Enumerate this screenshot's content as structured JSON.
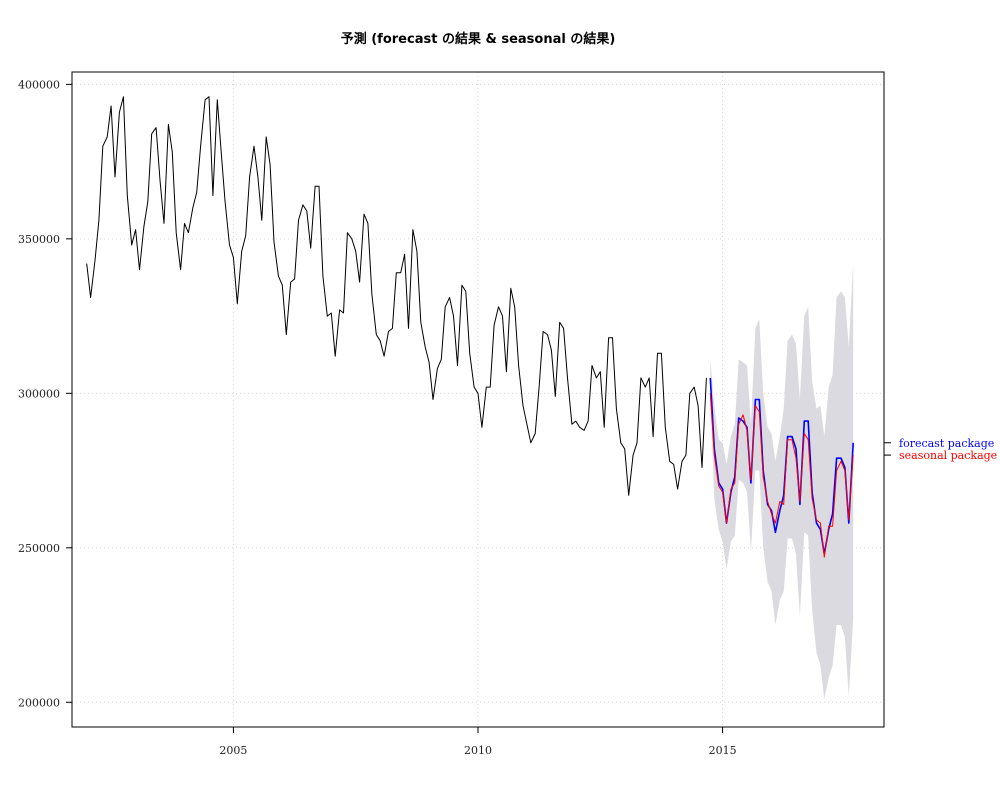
{
  "chart_data": {
    "type": "line",
    "title": "予測 (forecast の結果 & seasonal の結果)",
    "xlabel": "",
    "ylabel": "",
    "xlim": [
      2001.7,
      2018.3
    ],
    "ylim": [
      192000,
      404000
    ],
    "x_ticks": [
      2005,
      2010,
      2015
    ],
    "x_tick_labels": [
      "2005",
      "2010",
      "2015"
    ],
    "y_ticks": [
      200000,
      250000,
      300000,
      350000,
      400000
    ],
    "y_tick_labels": [
      "200000",
      "250000",
      "300000",
      "350000",
      "400000"
    ],
    "grid": true,
    "legend_placement": "right margin",
    "series": [
      {
        "key": "observed",
        "color": "#000000",
        "points": [
          [
            2002.0,
            342000
          ],
          [
            2002.08,
            331000
          ],
          [
            2002.17,
            343000
          ],
          [
            2002.25,
            356000
          ],
          [
            2002.33,
            380000
          ],
          [
            2002.42,
            383000
          ],
          [
            2002.5,
            393000
          ],
          [
            2002.58,
            370000
          ],
          [
            2002.67,
            391000
          ],
          [
            2002.75,
            396000
          ],
          [
            2002.83,
            364000
          ],
          [
            2002.92,
            348000
          ],
          [
            2003.0,
            353000
          ],
          [
            2003.08,
            340000
          ],
          [
            2003.17,
            354000
          ],
          [
            2003.25,
            362000
          ],
          [
            2003.33,
            384000
          ],
          [
            2003.42,
            386000
          ],
          [
            2003.5,
            369000
          ],
          [
            2003.58,
            355000
          ],
          [
            2003.67,
            387000
          ],
          [
            2003.75,
            378000
          ],
          [
            2003.83,
            352000
          ],
          [
            2003.92,
            340000
          ],
          [
            2004.0,
            355000
          ],
          [
            2004.08,
            352000
          ],
          [
            2004.17,
            360000
          ],
          [
            2004.25,
            365000
          ],
          [
            2004.33,
            380000
          ],
          [
            2004.42,
            395000
          ],
          [
            2004.5,
            396000
          ],
          [
            2004.58,
            364000
          ],
          [
            2004.67,
            395000
          ],
          [
            2004.75,
            378000
          ],
          [
            2004.83,
            362000
          ],
          [
            2004.92,
            348000
          ],
          [
            2005.0,
            344000
          ],
          [
            2005.08,
            329000
          ],
          [
            2005.17,
            346000
          ],
          [
            2005.25,
            351000
          ],
          [
            2005.33,
            370000
          ],
          [
            2005.42,
            380000
          ],
          [
            2005.5,
            370000
          ],
          [
            2005.58,
            356000
          ],
          [
            2005.67,
            383000
          ],
          [
            2005.75,
            374000
          ],
          [
            2005.83,
            349000
          ],
          [
            2005.92,
            338000
          ],
          [
            2006.0,
            335000
          ],
          [
            2006.08,
            319000
          ],
          [
            2006.17,
            336000
          ],
          [
            2006.25,
            337000
          ],
          [
            2006.33,
            356000
          ],
          [
            2006.42,
            361000
          ],
          [
            2006.5,
            359000
          ],
          [
            2006.58,
            347000
          ],
          [
            2006.67,
            367000
          ],
          [
            2006.75,
            367000
          ],
          [
            2006.83,
            338000
          ],
          [
            2006.92,
            325000
          ],
          [
            2007.0,
            326000
          ],
          [
            2007.08,
            312000
          ],
          [
            2007.17,
            327000
          ],
          [
            2007.25,
            326000
          ],
          [
            2007.33,
            352000
          ],
          [
            2007.42,
            350000
          ],
          [
            2007.5,
            346000
          ],
          [
            2007.58,
            336000
          ],
          [
            2007.67,
            358000
          ],
          [
            2007.75,
            355000
          ],
          [
            2007.83,
            332000
          ],
          [
            2007.92,
            319000
          ],
          [
            2008.0,
            317000
          ],
          [
            2008.08,
            312000
          ],
          [
            2008.17,
            320000
          ],
          [
            2008.25,
            321000
          ],
          [
            2008.33,
            339000
          ],
          [
            2008.42,
            339000
          ],
          [
            2008.5,
            345000
          ],
          [
            2008.58,
            321000
          ],
          [
            2008.67,
            353000
          ],
          [
            2008.75,
            346000
          ],
          [
            2008.83,
            323000
          ],
          [
            2008.92,
            315000
          ],
          [
            2009.0,
            310000
          ],
          [
            2009.08,
            298000
          ],
          [
            2009.17,
            308000
          ],
          [
            2009.25,
            311000
          ],
          [
            2009.33,
            328000
          ],
          [
            2009.42,
            331000
          ],
          [
            2009.5,
            325000
          ],
          [
            2009.58,
            309000
          ],
          [
            2009.67,
            335000
          ],
          [
            2009.75,
            333000
          ],
          [
            2009.83,
            313000
          ],
          [
            2009.92,
            302000
          ],
          [
            2010.0,
            300000
          ],
          [
            2010.08,
            289000
          ],
          [
            2010.17,
            302000
          ],
          [
            2010.25,
            302000
          ],
          [
            2010.33,
            322000
          ],
          [
            2010.42,
            328000
          ],
          [
            2010.5,
            325000
          ],
          [
            2010.58,
            307000
          ],
          [
            2010.67,
            334000
          ],
          [
            2010.75,
            328000
          ],
          [
            2010.83,
            309000
          ],
          [
            2010.92,
            296000
          ],
          [
            2011.0,
            290000
          ],
          [
            2011.08,
            284000
          ],
          [
            2011.17,
            287000
          ],
          [
            2011.25,
            302000
          ],
          [
            2011.33,
            320000
          ],
          [
            2011.42,
            319000
          ],
          [
            2011.5,
            314000
          ],
          [
            2011.58,
            299000
          ],
          [
            2011.67,
            323000
          ],
          [
            2011.75,
            321000
          ],
          [
            2011.83,
            305000
          ],
          [
            2011.92,
            290000
          ],
          [
            2012.0,
            291000
          ],
          [
            2012.08,
            289000
          ],
          [
            2012.17,
            288000
          ],
          [
            2012.25,
            291000
          ],
          [
            2012.33,
            309000
          ],
          [
            2012.42,
            305000
          ],
          [
            2012.5,
            307000
          ],
          [
            2012.58,
            289000
          ],
          [
            2012.67,
            318000
          ],
          [
            2012.75,
            318000
          ],
          [
            2012.83,
            295000
          ],
          [
            2012.92,
            284000
          ],
          [
            2013.0,
            282000
          ],
          [
            2013.08,
            267000
          ],
          [
            2013.17,
            280000
          ],
          [
            2013.25,
            284000
          ],
          [
            2013.33,
            305000
          ],
          [
            2013.42,
            302000
          ],
          [
            2013.5,
            305000
          ],
          [
            2013.58,
            286000
          ],
          [
            2013.67,
            313000
          ],
          [
            2013.75,
            313000
          ],
          [
            2013.83,
            289000
          ],
          [
            2013.92,
            278000
          ],
          [
            2014.0,
            277000
          ],
          [
            2014.08,
            269000
          ],
          [
            2014.17,
            278000
          ],
          [
            2014.25,
            280000
          ],
          [
            2014.33,
            300000
          ],
          [
            2014.42,
            302000
          ],
          [
            2014.5,
            296000
          ],
          [
            2014.58,
            276000
          ],
          [
            2014.67,
            305000
          ]
        ]
      },
      {
        "key": "forecast",
        "name": "forecast package",
        "color": "#0000ff",
        "points": [
          [
            2014.75,
            305000
          ],
          [
            2014.83,
            282000
          ],
          [
            2014.92,
            271000
          ],
          [
            2015.0,
            269000
          ],
          [
            2015.08,
            258000
          ],
          [
            2015.17,
            268000
          ],
          [
            2015.25,
            273000
          ],
          [
            2015.33,
            292000
          ],
          [
            2015.42,
            291000
          ],
          [
            2015.5,
            289000
          ],
          [
            2015.58,
            271000
          ],
          [
            2015.67,
            298000
          ],
          [
            2015.75,
            298000
          ],
          [
            2015.83,
            275000
          ],
          [
            2015.92,
            264000
          ],
          [
            2016.0,
            262000
          ],
          [
            2016.08,
            255000
          ],
          [
            2016.17,
            262000
          ],
          [
            2016.25,
            267000
          ],
          [
            2016.33,
            286000
          ],
          [
            2016.42,
            286000
          ],
          [
            2016.5,
            282000
          ],
          [
            2016.58,
            264000
          ],
          [
            2016.67,
            291000
          ],
          [
            2016.75,
            291000
          ],
          [
            2016.83,
            268000
          ],
          [
            2016.92,
            258000
          ],
          [
            2017.0,
            256000
          ],
          [
            2017.08,
            248000
          ],
          [
            2017.17,
            256000
          ],
          [
            2017.25,
            261000
          ],
          [
            2017.33,
            279000
          ],
          [
            2017.42,
            279000
          ],
          [
            2017.5,
            276000
          ],
          [
            2017.58,
            258000
          ],
          [
            2017.67,
            284000
          ]
        ]
      },
      {
        "key": "seasonal",
        "name": "seasonal package",
        "color": "#ff0000",
        "points": [
          [
            2014.75,
            300000
          ],
          [
            2014.83,
            280000
          ],
          [
            2014.92,
            270000
          ],
          [
            2015.0,
            268000
          ],
          [
            2015.08,
            258000
          ],
          [
            2015.17,
            269000
          ],
          [
            2015.25,
            271000
          ],
          [
            2015.33,
            290000
          ],
          [
            2015.42,
            293000
          ],
          [
            2015.5,
            288000
          ],
          [
            2015.58,
            272000
          ],
          [
            2015.67,
            296000
          ],
          [
            2015.75,
            294000
          ],
          [
            2015.83,
            273000
          ],
          [
            2015.92,
            265000
          ],
          [
            2016.0,
            261000
          ],
          [
            2016.08,
            258000
          ],
          [
            2016.17,
            265000
          ],
          [
            2016.25,
            264000
          ],
          [
            2016.33,
            285000
          ],
          [
            2016.42,
            285000
          ],
          [
            2016.5,
            279000
          ],
          [
            2016.58,
            265000
          ],
          [
            2016.67,
            287000
          ],
          [
            2016.75,
            285000
          ],
          [
            2016.83,
            266000
          ],
          [
            2016.92,
            259000
          ],
          [
            2017.0,
            258000
          ],
          [
            2017.08,
            247000
          ],
          [
            2017.17,
            257000
          ],
          [
            2017.25,
            257000
          ],
          [
            2017.33,
            275000
          ],
          [
            2017.42,
            278000
          ],
          [
            2017.5,
            275000
          ],
          [
            2017.58,
            259000
          ],
          [
            2017.67,
            280000
          ]
        ]
      }
    ],
    "interval": {
      "color": "#dadae0",
      "x": [
        2014.75,
        2014.83,
        2014.92,
        2015.0,
        2015.08,
        2015.17,
        2015.25,
        2015.33,
        2015.42,
        2015.5,
        2015.58,
        2015.67,
        2015.75,
        2015.83,
        2015.92,
        2016.0,
        2016.08,
        2016.17,
        2016.25,
        2016.33,
        2016.42,
        2016.5,
        2016.58,
        2016.67,
        2016.75,
        2016.83,
        2016.92,
        2017.0,
        2017.08,
        2017.17,
        2017.25,
        2017.33,
        2017.42,
        2017.5,
        2017.58,
        2017.67
      ],
      "lower": [
        299000,
        266000,
        256000,
        252000,
        243000,
        252000,
        254000,
        272000,
        271000,
        268000,
        249000,
        275000,
        275000,
        250000,
        239000,
        236000,
        225000,
        233000,
        236000,
        253000,
        253000,
        248000,
        228000,
        255000,
        254000,
        230000,
        216000,
        212000,
        201000,
        208000,
        212000,
        225000,
        225000,
        221000,
        202000,
        227000
      ],
      "upper": [
        311000,
        296000,
        285000,
        284000,
        277000,
        286000,
        290000,
        311000,
        310000,
        309000,
        290000,
        321000,
        324000,
        300000,
        289000,
        287000,
        278000,
        286000,
        295000,
        317000,
        319000,
        316000,
        298000,
        325000,
        328000,
        304000,
        295000,
        296000,
        286000,
        302000,
        306000,
        331000,
        333000,
        331000,
        315000,
        342000
      ]
    }
  }
}
